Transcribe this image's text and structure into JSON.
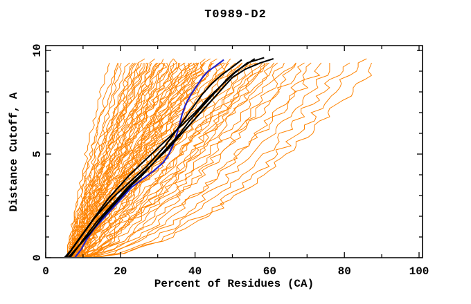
{
  "chart_data": {
    "type": "line",
    "title": "T0989-D2",
    "xlabel": "Percent of Residues (CA)",
    "ylabel": "Distance Cutoff, A",
    "xlim": [
      0,
      100
    ],
    "ylim": [
      0,
      10
    ],
    "grid": false,
    "legend": "none",
    "frame": "box-with-inward-ticks",
    "x_axis": {
      "major_ticks": [
        0,
        20,
        40,
        60,
        80,
        100
      ],
      "major_tick_labels": [
        "0",
        "20",
        "40",
        "60",
        "80",
        "100"
      ],
      "minor_ticks": [
        10,
        30,
        50,
        70,
        90
      ]
    },
    "y_axis": {
      "major_ticks": [
        0,
        5,
        10
      ],
      "major_tick_labels": [
        "0",
        "5",
        "10"
      ],
      "minor_ticks": [
        1,
        2,
        3,
        4,
        6,
        7,
        8,
        9
      ],
      "tick_label_rotation_deg": -90
    },
    "colors": {
      "background": "#ffffff",
      "axis": "#000000",
      "server_models": "#ff8300",
      "highlight_blue": "#2222cc",
      "highlight_black": "#000000"
    },
    "series": [
      {
        "name": "server-model-ensemble",
        "color": "#ff8300",
        "width": 1,
        "format": "curves are [percent_at_cutoff_0, percent_at_cutoff_9.5, shape_exponent, jitter_amplitude_percent]",
        "curves": [
          [
            6.5,
            17,
            1.35,
            0.5
          ],
          [
            7,
            19,
            1.3,
            0.5
          ],
          [
            6,
            20,
            1.28,
            0.6
          ],
          [
            7.5,
            21,
            1.32,
            0.5
          ],
          [
            6.5,
            22,
            1.25,
            0.6
          ],
          [
            8,
            23,
            1.3,
            0.6
          ],
          [
            6,
            24,
            1.2,
            0.7
          ],
          [
            7,
            24.5,
            1.28,
            0.6
          ],
          [
            5.5,
            25,
            1.22,
            0.7
          ],
          [
            8,
            26,
            1.25,
            0.7
          ],
          [
            6.5,
            26.5,
            1.15,
            0.7
          ],
          [
            7.5,
            27,
            1.2,
            0.8
          ],
          [
            6,
            28,
            1.25,
            0.7
          ],
          [
            8.5,
            28.5,
            1.12,
            0.8
          ],
          [
            6.5,
            29,
            1.2,
            0.8
          ],
          [
            7,
            30,
            1.15,
            0.8
          ],
          [
            9,
            30.5,
            1.22,
            0.7
          ],
          [
            6,
            31,
            1.1,
            0.9
          ],
          [
            7.5,
            32,
            1.18,
            0.8
          ],
          [
            8,
            32.5,
            1.12,
            0.9
          ],
          [
            6.5,
            33,
            1.08,
            0.8
          ],
          [
            9,
            34,
            1.18,
            0.8
          ],
          [
            7,
            34.5,
            1.12,
            0.9
          ],
          [
            8,
            35,
            1.05,
            0.9
          ],
          [
            6,
            36,
            1.15,
            0.9
          ],
          [
            9.5,
            36.5,
            1.05,
            0.8
          ],
          [
            7.5,
            37,
            1.18,
            0.9
          ],
          [
            8.5,
            38,
            1.08,
            1.0
          ],
          [
            6.5,
            38.5,
            1.15,
            0.9
          ],
          [
            7,
            39,
            1.0,
            1.0
          ],
          [
            9,
            40,
            1.1,
            0.9
          ],
          [
            8,
            40.5,
            1.15,
            1.0
          ],
          [
            6.5,
            41,
            1.05,
            1.0
          ],
          [
            9.5,
            42,
            1.12,
            0.9
          ],
          [
            7.5,
            42.5,
            1.0,
            1.0
          ],
          [
            8.5,
            43,
            1.1,
            1.0
          ],
          [
            7,
            44,
            1.02,
            1.1
          ],
          [
            10,
            44.5,
            1.12,
            1.0
          ],
          [
            8,
            45,
            0.95,
            1.1
          ],
          [
            9,
            46,
            1.05,
            1.0
          ],
          [
            7.5,
            47,
            1.08,
            1.1
          ],
          [
            10.5,
            48,
            0.95,
            1.0
          ],
          [
            8.5,
            49,
            1.05,
            1.1
          ],
          [
            9.5,
            50,
            0.9,
            1.1
          ],
          [
            8,
            51,
            1.0,
            1.1
          ],
          [
            10,
            52,
            0.95,
            1.1
          ],
          [
            9,
            53,
            1.02,
            1.2
          ],
          [
            11,
            54,
            0.88,
            1.1
          ],
          [
            8.5,
            55,
            0.98,
            1.2
          ],
          [
            10.5,
            56,
            0.9,
            1.2
          ],
          [
            9.5,
            57,
            0.95,
            1.2
          ],
          [
            11.5,
            58,
            0.85,
            1.2
          ],
          [
            9,
            59,
            0.92,
            1.2
          ],
          [
            10,
            60,
            0.85,
            1.3
          ],
          [
            12,
            61,
            0.9,
            1.2
          ],
          [
            9.5,
            62,
            0.8,
            1.3
          ],
          [
            11,
            63,
            0.85,
            1.3
          ],
          [
            10.5,
            64,
            0.78,
            1.3
          ],
          [
            12.5,
            66,
            0.8,
            1.3
          ],
          [
            10,
            68,
            0.72,
            1.4
          ],
          [
            11.5,
            70,
            0.75,
            1.4
          ],
          [
            13,
            72,
            0.68,
            1.4
          ],
          [
            11,
            75,
            0.7,
            1.5
          ],
          [
            12,
            78,
            0.65,
            1.5
          ],
          [
            13,
            81,
            0.62,
            1.5
          ],
          [
            12.5,
            85,
            0.58,
            1.6
          ],
          [
            13,
            89,
            0.6,
            1.6
          ],
          [
            6,
            27.5,
            1.25,
            0.7
          ],
          [
            7,
            31.5,
            1.1,
            0.8
          ],
          [
            8.5,
            33.5,
            1.15,
            0.9
          ],
          [
            6.5,
            35.5,
            1.08,
            0.9
          ],
          [
            9,
            37.5,
            1.0,
            1.0
          ],
          [
            7.5,
            39.5,
            1.15,
            1.0
          ],
          [
            8,
            41.5,
            1.08,
            1.0
          ],
          [
            9.5,
            43.5,
            0.98,
            1.1
          ],
          [
            7,
            45.5,
            1.1,
            1.1
          ],
          [
            10,
            47.5,
            1.0,
            1.1
          ],
          [
            6.5,
            29.5,
            1.18,
            0.8
          ],
          [
            8,
            25.5,
            1.15,
            0.7
          ],
          [
            7.5,
            49.5,
            1.05,
            1.1
          ]
        ]
      },
      {
        "name": "highlighted-model-blue",
        "color": "#2222cc",
        "width": 2.2,
        "points": [
          [
            7.8,
            0
          ],
          [
            9.5,
            0.4
          ],
          [
            11,
            0.9
          ],
          [
            13,
            1.4
          ],
          [
            15.5,
            1.9
          ],
          [
            18,
            2.4
          ],
          [
            20.5,
            2.9
          ],
          [
            23,
            3.4
          ],
          [
            26,
            3.8
          ],
          [
            29,
            4.2
          ],
          [
            31.5,
            4.6
          ],
          [
            33,
            5.0
          ],
          [
            34,
            5.4
          ],
          [
            35,
            5.9
          ],
          [
            35.8,
            6.4
          ],
          [
            36.5,
            6.9
          ],
          [
            37.5,
            7.4
          ],
          [
            39,
            7.9
          ],
          [
            40.5,
            8.3
          ],
          [
            42,
            8.7
          ],
          [
            43.5,
            9.0
          ],
          [
            45.5,
            9.25
          ],
          [
            47.7,
            9.55
          ]
        ]
      },
      {
        "name": "highlighted-model-black-1",
        "color": "#000000",
        "width": 2.1,
        "points": [
          [
            5.5,
            0
          ],
          [
            7,
            0.4
          ],
          [
            9,
            0.9
          ],
          [
            11,
            1.4
          ],
          [
            13,
            1.9
          ],
          [
            15.5,
            2.4
          ],
          [
            18,
            2.9
          ],
          [
            21,
            3.4
          ],
          [
            24,
            3.9
          ],
          [
            27,
            4.4
          ],
          [
            29.5,
            4.9
          ],
          [
            32,
            5.4
          ],
          [
            34,
            5.9
          ],
          [
            36,
            6.4
          ],
          [
            38,
            6.9
          ],
          [
            40,
            7.4
          ],
          [
            42,
            7.9
          ],
          [
            44.5,
            8.4
          ],
          [
            47,
            8.8
          ],
          [
            50,
            9.2
          ],
          [
            52.5,
            9.55
          ]
        ]
      },
      {
        "name": "highlighted-model-black-2",
        "color": "#000000",
        "width": 2.1,
        "points": [
          [
            6,
            0
          ],
          [
            8.5,
            0.5
          ],
          [
            11,
            1.1
          ],
          [
            13.5,
            1.7
          ],
          [
            16,
            2.2
          ],
          [
            19,
            2.8
          ],
          [
            22,
            3.4
          ],
          [
            25.5,
            4
          ],
          [
            28.5,
            4.5
          ],
          [
            31,
            5
          ],
          [
            33.5,
            5.5
          ],
          [
            36,
            6
          ],
          [
            38.5,
            6.6
          ],
          [
            41,
            7.1
          ],
          [
            43.5,
            7.6
          ],
          [
            46,
            8.1
          ],
          [
            48.5,
            8.6
          ],
          [
            51,
            9
          ],
          [
            53.5,
            9.3
          ],
          [
            56,
            9.6
          ]
        ]
      },
      {
        "name": "highlighted-model-black-3",
        "color": "#000000",
        "width": 2.1,
        "points": [
          [
            6.5,
            0
          ],
          [
            9,
            0.6
          ],
          [
            12,
            1.2
          ],
          [
            15,
            1.9
          ],
          [
            17.5,
            2.4
          ],
          [
            20,
            2.9
          ],
          [
            23,
            3.5
          ],
          [
            26,
            4
          ],
          [
            29,
            4.6
          ],
          [
            32.5,
            5.2
          ],
          [
            36,
            5.9
          ],
          [
            39.5,
            6.6
          ],
          [
            43,
            7.3
          ],
          [
            46.5,
            8
          ],
          [
            50,
            8.7
          ],
          [
            53.5,
            9.1
          ],
          [
            57.5,
            9.4
          ],
          [
            61,
            9.6
          ]
        ]
      },
      {
        "name": "highlighted-model-black-4",
        "color": "#000000",
        "width": 2.1,
        "points": [
          [
            5,
            0
          ],
          [
            6.5,
            0.3
          ],
          [
            8.5,
            0.8
          ],
          [
            10.5,
            1.3
          ],
          [
            12.5,
            1.8
          ],
          [
            14.5,
            2.3
          ],
          [
            17,
            2.9
          ],
          [
            19.5,
            3.4
          ],
          [
            22.5,
            4
          ],
          [
            26,
            4.6
          ],
          [
            29.5,
            5.2
          ],
          [
            33,
            5.8
          ],
          [
            36.5,
            6.4
          ],
          [
            40,
            7
          ],
          [
            43.5,
            7.7
          ],
          [
            47,
            8.3
          ],
          [
            50.5,
            8.9
          ],
          [
            54,
            9.4
          ],
          [
            58.5,
            9.65
          ]
        ]
      }
    ]
  }
}
